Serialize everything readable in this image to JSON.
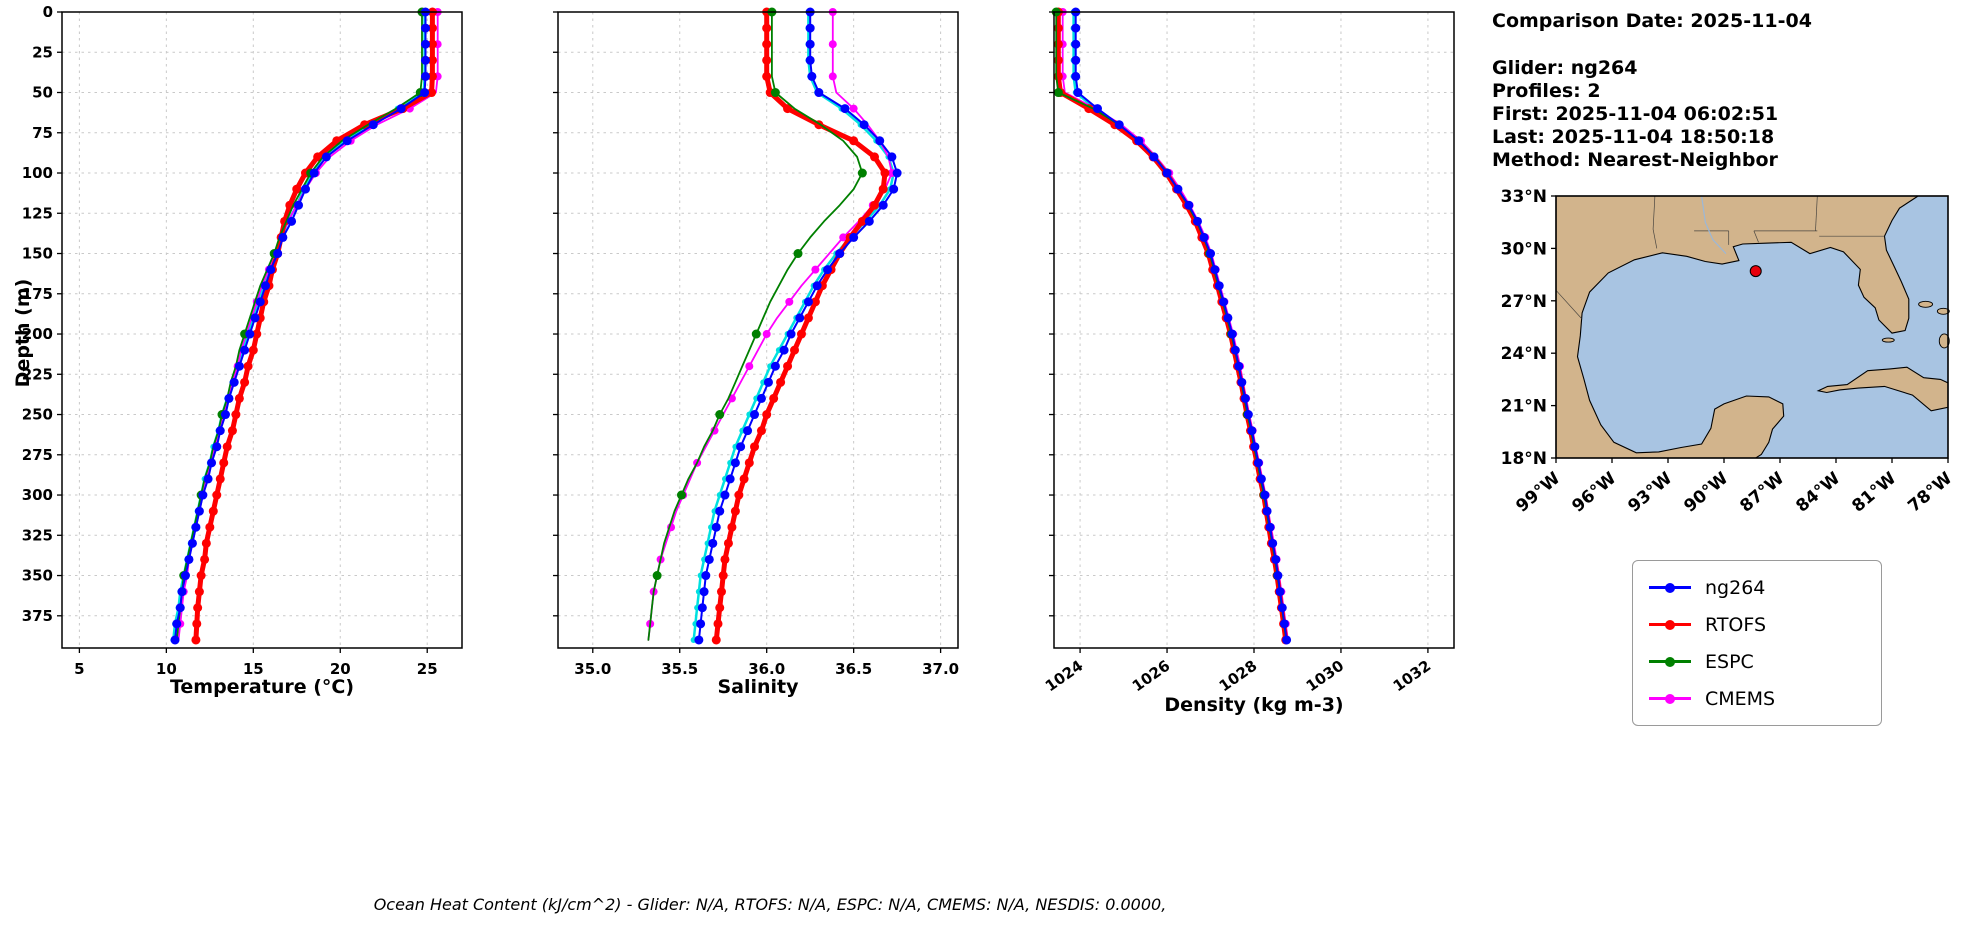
{
  "info_panel": {
    "comparison_date": "Comparison Date: 2025-11-04",
    "glider": "Glider: ng264",
    "profiles": "Profiles: 2",
    "first": "First: 2025-11-04 06:02:51",
    "last": "Last: 2025-11-04 18:50:18",
    "method": "Method: Nearest-Neighbor"
  },
  "footer": "Ocean Heat Content (kJ/cm^2) - Glider: N/A,  RTOFS: N/A,  ESPC: N/A,  CMEMS: N/A,  NESDIS: 0.0000,",
  "legend": {
    "items": [
      {
        "label": "ng264",
        "color": "#0000ff"
      },
      {
        "label": "RTOFS",
        "color": "#ff0000"
      },
      {
        "label": "ESPC",
        "color": "#008000"
      },
      {
        "label": "CMEMS",
        "color": "#ff00ff"
      }
    ]
  },
  "map": {
    "lat_ticks": [
      "33°N",
      "30°N",
      "27°N",
      "24°N",
      "21°N",
      "18°N"
    ],
    "lat_values": [
      33,
      30,
      27,
      24,
      21,
      18
    ],
    "lon_ticks": [
      "99°W",
      "96°W",
      "93°W",
      "90°W",
      "87°W",
      "84°W",
      "81°W",
      "78°W"
    ],
    "lon_values": [
      -99,
      -96,
      -93,
      -90,
      -87,
      -84,
      -81,
      -78
    ],
    "extent": {
      "lon_min": -99,
      "lon_max": -78,
      "lat_min": 18,
      "lat_max": 33
    },
    "land_color": "#d2b48c",
    "water_color": "#a8c4e2",
    "marker": {
      "lon": -88.3,
      "lat": 28.7,
      "color": "#e8000b"
    }
  },
  "chart_data": {
    "type": "line",
    "ylabel": "Depth (m)",
    "ylim": [
      0,
      395
    ],
    "yticks": [
      0,
      25,
      50,
      75,
      100,
      125,
      150,
      175,
      200,
      225,
      250,
      275,
      300,
      325,
      350,
      375
    ],
    "depths": [
      0,
      10,
      20,
      30,
      40,
      50,
      60,
      70,
      80,
      90,
      100,
      110,
      120,
      130,
      140,
      150,
      160,
      170,
      180,
      190,
      200,
      210,
      220,
      230,
      240,
      250,
      260,
      270,
      280,
      290,
      300,
      310,
      320,
      330,
      340,
      350,
      360,
      370,
      380,
      390
    ],
    "draw_order": [
      "glider_profile2",
      "CMEMS",
      "RTOFS",
      "ESPC",
      "ng264"
    ],
    "series_styles": {
      "ng264": {
        "color": "#0000ff",
        "linewidth": 2,
        "marker_radius": 4.5,
        "marker_every": 1
      },
      "RTOFS": {
        "color": "#ff0000",
        "linewidth": 5,
        "marker_radius": 4.5,
        "marker_every": 1
      },
      "ESPC": {
        "color": "#008000",
        "linewidth": 1.8,
        "marker_radius": 4.5,
        "marker_every": 5
      },
      "CMEMS": {
        "color": "#ff00ff",
        "linewidth": 1.8,
        "marker_radius": 4,
        "marker_every": 2
      },
      "glider_profile2": {
        "color": "#00e0e0",
        "linewidth": 2.5,
        "marker_radius": 3,
        "marker_every": 1
      }
    },
    "panels": [
      {
        "name": "temperature",
        "xlabel": "Temperature (°C)",
        "xlim": [
          4.0,
          27.0
        ],
        "xticks": [
          5,
          10,
          15,
          20,
          25
        ],
        "xtick_labels": [
          "5",
          "10",
          "15",
          "20",
          "25"
        ],
        "rotate_xticks": false,
        "series": {
          "ng264": [
            24.9,
            24.9,
            24.9,
            24.9,
            24.9,
            24.85,
            23.5,
            21.9,
            20.4,
            19.2,
            18.5,
            18.0,
            17.6,
            17.2,
            16.7,
            16.4,
            16.0,
            15.7,
            15.4,
            15.1,
            14.8,
            14.5,
            14.2,
            13.9,
            13.6,
            13.4,
            13.1,
            12.9,
            12.6,
            12.4,
            12.1,
            11.9,
            11.7,
            11.5,
            11.3,
            11.1,
            10.9,
            10.8,
            10.6,
            10.5
          ],
          "RTOFS": [
            25.3,
            25.3,
            25.3,
            25.3,
            25.3,
            25.25,
            23.6,
            21.4,
            19.8,
            18.7,
            18.0,
            17.5,
            17.1,
            16.8,
            16.6,
            16.4,
            16.1,
            15.9,
            15.6,
            15.4,
            15.2,
            15.0,
            14.7,
            14.5,
            14.2,
            14.0,
            13.8,
            13.5,
            13.3,
            13.1,
            12.9,
            12.7,
            12.5,
            12.3,
            12.2,
            12.0,
            11.9,
            11.8,
            11.75,
            11.7
          ],
          "ESPC": [
            24.7,
            24.7,
            24.7,
            24.7,
            24.7,
            24.6,
            23.2,
            21.6,
            20.1,
            19.0,
            18.3,
            17.8,
            17.3,
            16.9,
            16.5,
            16.2,
            15.8,
            15.4,
            15.1,
            14.8,
            14.5,
            14.2,
            14.0,
            13.7,
            13.5,
            13.2,
            13.0,
            12.7,
            12.5,
            12.2,
            12.0,
            11.8,
            11.6,
            11.4,
            11.2,
            11.0,
            10.9,
            10.8,
            10.7,
            10.6
          ],
          "CMEMS": [
            25.6,
            25.6,
            25.6,
            25.6,
            25.6,
            25.5,
            24.0,
            22.1,
            20.6,
            19.4,
            18.6,
            18.0,
            17.5,
            17.0,
            16.6,
            16.3,
            15.9,
            15.5,
            15.2,
            14.9,
            14.6,
            14.3,
            14.1,
            13.8,
            13.6,
            13.3,
            13.1,
            12.8,
            12.6,
            12.3,
            12.1,
            11.9,
            11.7,
            11.5,
            11.3,
            11.2,
            11.0,
            10.9,
            10.8,
            10.7
          ],
          "glider_profile2": [
            24.85,
            24.85,
            24.85,
            24.85,
            24.85,
            24.8,
            23.3,
            21.7,
            20.2,
            19.0,
            18.4,
            17.9,
            17.5,
            17.0,
            16.6,
            16.3,
            15.9,
            15.6,
            15.3,
            15.0,
            14.7,
            14.4,
            14.1,
            13.8,
            13.5,
            13.2,
            13.0,
            12.7,
            12.5,
            12.2,
            12.0,
            11.8,
            11.6,
            11.4,
            11.2,
            11.0,
            10.8,
            10.7,
            10.5,
            10.4
          ]
        }
      },
      {
        "name": "salinity",
        "xlabel": "Salinity",
        "xlim": [
          34.8,
          37.1
        ],
        "xticks": [
          35.0,
          35.5,
          36.0,
          36.5,
          37.0
        ],
        "xtick_labels": [
          "35.0",
          "35.5",
          "36.0",
          "36.5",
          "37.0"
        ],
        "rotate_xticks": false,
        "series": {
          "ng264": [
            36.25,
            36.25,
            36.25,
            36.25,
            36.26,
            36.3,
            36.45,
            36.56,
            36.65,
            36.72,
            36.75,
            36.73,
            36.67,
            36.59,
            36.5,
            36.42,
            36.35,
            36.29,
            36.24,
            36.19,
            36.14,
            36.1,
            36.05,
            36.01,
            35.97,
            35.93,
            35.89,
            35.85,
            35.82,
            35.79,
            35.76,
            35.73,
            35.71,
            35.69,
            35.67,
            35.65,
            35.64,
            35.63,
            35.62,
            35.61
          ],
          "RTOFS": [
            36.0,
            36.0,
            36.0,
            36.0,
            36.0,
            36.02,
            36.12,
            36.3,
            36.5,
            36.62,
            36.68,
            36.67,
            36.62,
            36.55,
            36.48,
            36.42,
            36.37,
            36.32,
            36.28,
            36.24,
            36.2,
            36.16,
            36.12,
            36.08,
            36.04,
            36.0,
            35.97,
            35.93,
            35.9,
            35.87,
            35.84,
            35.82,
            35.8,
            35.78,
            35.76,
            35.75,
            35.74,
            35.73,
            35.72,
            35.71
          ],
          "ESPC": [
            36.03,
            36.03,
            36.03,
            36.03,
            36.03,
            36.05,
            36.16,
            36.31,
            36.44,
            36.52,
            36.55,
            36.5,
            36.42,
            36.33,
            36.25,
            36.18,
            36.12,
            36.07,
            36.02,
            35.98,
            35.94,
            35.9,
            35.86,
            35.82,
            35.78,
            35.73,
            35.69,
            35.64,
            35.6,
            35.55,
            35.51,
            35.47,
            35.44,
            35.41,
            35.39,
            35.37,
            35.35,
            35.34,
            35.33,
            35.32
          ],
          "CMEMS": [
            36.38,
            36.38,
            36.38,
            36.38,
            36.38,
            36.4,
            36.5,
            36.58,
            36.65,
            36.7,
            36.72,
            36.68,
            36.61,
            36.53,
            36.44,
            36.36,
            36.28,
            36.2,
            36.13,
            36.06,
            36.0,
            35.95,
            35.9,
            35.85,
            35.8,
            35.75,
            35.7,
            35.65,
            35.6,
            35.56,
            35.52,
            35.48,
            35.45,
            35.42,
            35.39,
            35.37,
            35.35,
            35.34,
            35.33,
            35.32
          ],
          "glider_profile2": [
            36.24,
            36.24,
            36.24,
            36.24,
            36.25,
            36.29,
            36.43,
            36.54,
            36.63,
            36.7,
            36.73,
            36.71,
            36.65,
            36.57,
            36.48,
            36.4,
            36.33,
            36.27,
            36.22,
            36.17,
            36.12,
            36.07,
            36.02,
            35.98,
            35.94,
            35.9,
            35.86,
            35.82,
            35.79,
            35.76,
            35.73,
            35.7,
            35.68,
            35.66,
            35.64,
            35.62,
            35.61,
            35.6,
            35.59,
            35.58
          ]
        }
      },
      {
        "name": "density",
        "xlabel": "Density (kg m-3)",
        "xlim": [
          1023.4,
          1032.6
        ],
        "xticks": [
          1024,
          1026,
          1028,
          1030,
          1032
        ],
        "xtick_labels": [
          "1024",
          "1026",
          "1028",
          "1030",
          "1032"
        ],
        "rotate_xticks": true,
        "series": {
          "ng264": [
            1023.9,
            1023.9,
            1023.9,
            1023.9,
            1023.9,
            1023.95,
            1024.4,
            1024.9,
            1025.35,
            1025.7,
            1026.0,
            1026.25,
            1026.5,
            1026.7,
            1026.85,
            1027.0,
            1027.1,
            1027.2,
            1027.3,
            1027.4,
            1027.5,
            1027.57,
            1027.65,
            1027.72,
            1027.8,
            1027.87,
            1027.95,
            1028.02,
            1028.1,
            1028.17,
            1028.25,
            1028.3,
            1028.37,
            1028.43,
            1028.5,
            1028.55,
            1028.6,
            1028.65,
            1028.7,
            1028.75
          ],
          "RTOFS": [
            1023.5,
            1023.5,
            1023.5,
            1023.5,
            1023.5,
            1023.55,
            1024.2,
            1024.8,
            1025.3,
            1025.68,
            1025.98,
            1026.22,
            1026.45,
            1026.65,
            1026.8,
            1026.95,
            1027.05,
            1027.16,
            1027.26,
            1027.36,
            1027.46,
            1027.54,
            1027.62,
            1027.7,
            1027.77,
            1027.84,
            1027.92,
            1027.99,
            1028.07,
            1028.14,
            1028.22,
            1028.28,
            1028.34,
            1028.4,
            1028.47,
            1028.53,
            1028.58,
            1028.63,
            1028.68,
            1028.73
          ],
          "ESPC": [
            1023.45,
            1023.45,
            1023.45,
            1023.45,
            1023.45,
            1023.5,
            1024.3,
            1024.9,
            1025.35,
            1025.72,
            1026.0,
            1026.25,
            1026.48,
            1026.68,
            1026.84,
            1026.98,
            1027.08,
            1027.18,
            1027.28,
            1027.38,
            1027.48,
            1027.56,
            1027.64,
            1027.71,
            1027.78,
            1027.85,
            1027.93,
            1028.0,
            1028.08,
            1028.15,
            1028.23,
            1028.29,
            1028.35,
            1028.42,
            1028.48,
            1028.54,
            1028.59,
            1028.64,
            1028.69,
            1028.74
          ],
          "CMEMS": [
            1023.6,
            1023.6,
            1023.6,
            1023.6,
            1023.6,
            1023.65,
            1024.35,
            1024.95,
            1025.4,
            1025.75,
            1026.05,
            1026.3,
            1026.52,
            1026.72,
            1026.88,
            1027.02,
            1027.12,
            1027.22,
            1027.32,
            1027.42,
            1027.52,
            1027.6,
            1027.68,
            1027.75,
            1027.82,
            1027.89,
            1027.97,
            1028.04,
            1028.12,
            1028.19,
            1028.27,
            1028.33,
            1028.39,
            1028.46,
            1028.52,
            1028.58,
            1028.63,
            1028.68,
            1028.73,
            1028.78
          ],
          "glider_profile2": [
            1023.85,
            1023.85,
            1023.85,
            1023.85,
            1023.85,
            1023.9,
            1024.35,
            1024.85,
            1025.3,
            1025.65,
            1025.95,
            1026.2,
            1026.45,
            1026.65,
            1026.8,
            1026.95,
            1027.06,
            1027.17,
            1027.28,
            1027.38,
            1027.48,
            1027.55,
            1027.63,
            1027.7,
            1027.78,
            1027.85,
            1027.93,
            1028.0,
            1028.08,
            1028.15,
            1028.23,
            1028.28,
            1028.35,
            1028.41,
            1028.48,
            1028.53,
            1028.58,
            1028.63,
            1028.68,
            1028.73
          ]
        }
      }
    ]
  }
}
